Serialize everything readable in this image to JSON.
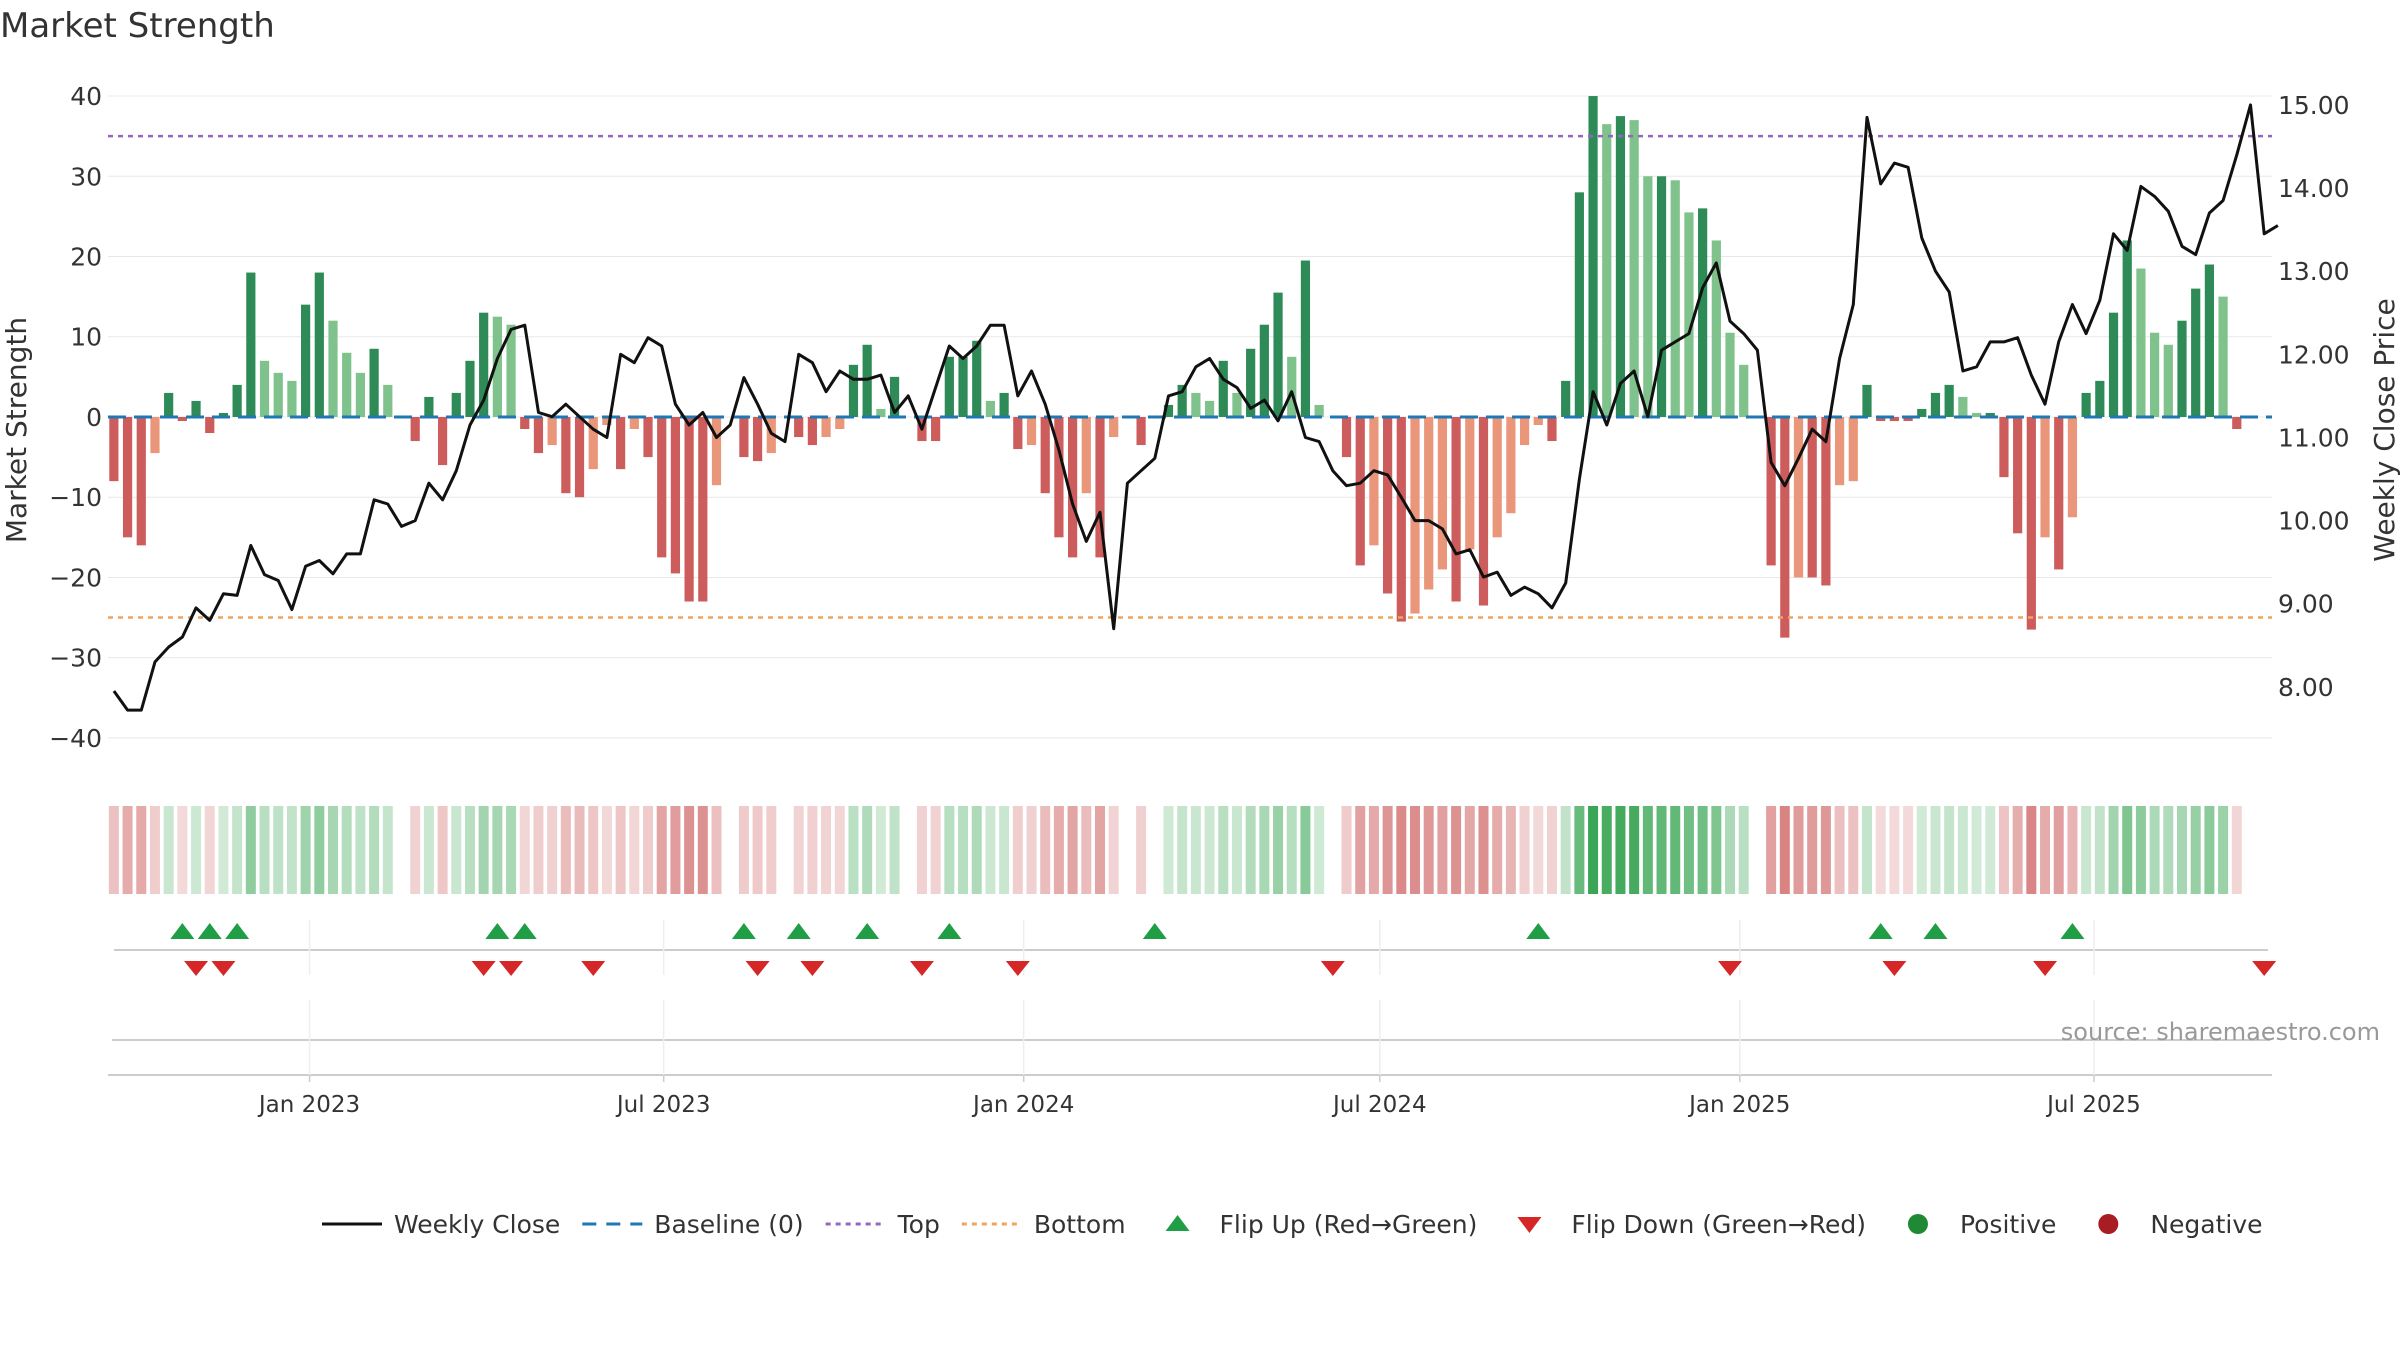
{
  "title": "Market Strength",
  "chart_data": {
    "type": "bar",
    "title": "Market Strength",
    "ylabel": "Market Strength",
    "y2label": "Weekly Close Price",
    "ylim": [
      -44,
      42
    ],
    "y2lim": [
      7.0,
      15.3
    ],
    "y_ticks": [
      -40,
      -30,
      -20,
      -10,
      0,
      10,
      20,
      30,
      40
    ],
    "y_tick_labels": [
      "−40",
      "−30",
      "−20",
      "−10",
      "0",
      "10",
      "20",
      "30",
      "40"
    ],
    "y2_ticks": [
      8,
      9,
      10,
      11,
      12,
      13,
      14,
      15
    ],
    "y2_tick_labels": [
      "8.00",
      "9.00",
      "10.00",
      "11.00",
      "12.00",
      "13.00",
      "14.00",
      "15.00"
    ],
    "x_range": [
      "2022-09-20",
      "2025-09-30"
    ],
    "x_ticks": [
      "2023-01-01",
      "2023-07-01",
      "2024-01-01",
      "2024-07-01",
      "2025-01-01",
      "2025-07-01"
    ],
    "x_tick_labels": [
      "Jan 2023",
      "Jul 2023",
      "Jan 2024",
      "Jul 2024",
      "Jan 2025",
      "Jul 2025"
    ],
    "top_level": 35,
    "bottom_level": -25,
    "start_week": "2022-09-23",
    "strength": [
      -8,
      -15,
      -16,
      -4.5,
      3,
      -0.5,
      2,
      -2,
      0.5,
      4,
      18,
      7,
      5.5,
      4.5,
      14,
      18,
      12,
      8,
      5.5,
      8.5,
      4,
      0,
      -3,
      2.5,
      -6,
      3,
      7,
      13,
      12.5,
      11.5,
      -1.5,
      -4.5,
      -3.5,
      -9.5,
      -10,
      -6.5,
      -1,
      -6.5,
      -1.5,
      -5,
      -17.5,
      -19.5,
      -23,
      -23,
      -8.5,
      0,
      -5,
      -5.5,
      -4.5,
      0,
      -2.5,
      -3.5,
      -2.5,
      -1.5,
      6.5,
      9,
      1,
      5,
      0,
      -3,
      -3,
      7.5,
      7.5,
      9.5,
      2,
      3,
      -4,
      -3.5,
      -9.5,
      -15,
      -17.5,
      -9.5,
      -17.5,
      -2.5,
      0,
      -3.5,
      0,
      1.5,
      4,
      3,
      2,
      7,
      3,
      8.5,
      11.5,
      15.5,
      7.5,
      19.5,
      1.5,
      0,
      -5,
      -18.5,
      -16,
      -22,
      -25.5,
      -24.5,
      -21.5,
      -19,
      -23,
      -16.5,
      -23.5,
      -15,
      -12,
      -3.5,
      -1,
      -3,
      4.5,
      28,
      40,
      36.5,
      37.5,
      37,
      30,
      30,
      29.5,
      25.5,
      26,
      22,
      10.5,
      6.5,
      0,
      -18.5,
      -27.5,
      -20,
      -20,
      -21,
      -8.5,
      -8,
      4,
      -0.5,
      -0.5,
      -0.5,
      1,
      3,
      4,
      2.5,
      0.5,
      0.5,
      -7.5,
      -14.5,
      -26.5,
      -15,
      -19,
      -12.5,
      3,
      4.5,
      13,
      22,
      18.5,
      10.5,
      9,
      12,
      16,
      19,
      15,
      -1.5
    ],
    "close": [
      7.95,
      7.72,
      7.72,
      8.3,
      8.48,
      8.6,
      8.95,
      8.8,
      9.12,
      9.1,
      9.7,
      9.35,
      9.28,
      8.93,
      9.45,
      9.52,
      9.36,
      9.6,
      9.6,
      10.25,
      10.2,
      9.93,
      10.0,
      10.45,
      10.25,
      10.6,
      11.15,
      11.45,
      11.95,
      12.3,
      12.35,
      11.3,
      11.25,
      11.4,
      11.25,
      11.1,
      11.0,
      12.0,
      11.9,
      12.2,
      12.1,
      11.4,
      11.15,
      11.3,
      11.0,
      11.15,
      11.72,
      11.4,
      11.05,
      10.95,
      12.0,
      11.9,
      11.55,
      11.8,
      11.7,
      11.7,
      11.75,
      11.3,
      11.5,
      11.1,
      11.6,
      12.1,
      11.95,
      12.1,
      12.35,
      12.35,
      11.5,
      11.8,
      11.4,
      10.85,
      10.2,
      9.75,
      10.1,
      8.7,
      10.45,
      10.6,
      10.75,
      11.5,
      11.55,
      11.85,
      11.95,
      11.7,
      11.6,
      11.35,
      11.45,
      11.2,
      11.55,
      11.0,
      10.95,
      10.6,
      10.42,
      10.45,
      10.6,
      10.55,
      10.28,
      10.0,
      10.0,
      9.9,
      9.6,
      9.65,
      9.32,
      9.38,
      9.1,
      9.2,
      9.12,
      8.95,
      9.25,
      10.5,
      11.55,
      11.15,
      11.65,
      11.8,
      11.25,
      12.05,
      12.15,
      12.25,
      12.8,
      13.1,
      12.4,
      12.25,
      12.05,
      10.7,
      10.42,
      10.75,
      11.1,
      10.95,
      11.95,
      12.6,
      14.85,
      14.05,
      14.3,
      14.25,
      13.4,
      13.0,
      12.75,
      11.8,
      11.85,
      12.15,
      12.15,
      12.2,
      11.75,
      11.4,
      12.15,
      12.6,
      12.25,
      12.65,
      13.45,
      13.25,
      14.02,
      13.9,
      13.72,
      13.3,
      13.2,
      13.7,
      13.85,
      14.4,
      15.0,
      13.45,
      13.55
    ],
    "flip_up": [
      "2022-10-28",
      "2022-11-11",
      "2022-11-25",
      "2023-04-07",
      "2023-04-21",
      "2023-08-11",
      "2023-09-08",
      "2023-10-13",
      "2023-11-24",
      "2024-03-08",
      "2024-09-20",
      "2025-03-14",
      "2025-04-11",
      "2025-06-20"
    ],
    "flip_down": [
      "2022-11-04",
      "2022-11-18",
      "2023-03-31",
      "2023-04-14",
      "2023-05-26",
      "2023-08-18",
      "2023-09-15",
      "2023-11-10",
      "2023-12-29",
      "2024-06-07",
      "2024-12-27",
      "2025-03-21",
      "2025-06-06",
      "2025-09-26"
    ],
    "legend_position": "bottom",
    "series": [
      {
        "name": "Weekly Close",
        "color": "#111111"
      },
      {
        "name": "Baseline (0)",
        "color": "#1f77b4"
      },
      {
        "name": "Top",
        "color": "#9467bd"
      },
      {
        "name": "Bottom",
        "color": "#f0a45e"
      },
      {
        "name": "Flip Up (Red→Green)",
        "color": "#1f9e45"
      },
      {
        "name": "Flip Down (Green→Red)",
        "color": "#d62728"
      },
      {
        "name": "Positive",
        "color": "#1f8a33"
      },
      {
        "name": "Negative",
        "color": "#a81c24"
      }
    ]
  },
  "colors": {
    "pos_strong": "#2e8b57",
    "pos_weak": "#7fc28b",
    "neg_strong": "#cd5c5c",
    "neg_weak": "#e9967a",
    "grid": "#e8e8e8",
    "axis_text": "#333333"
  },
  "source": "source: sharemaestro.com"
}
